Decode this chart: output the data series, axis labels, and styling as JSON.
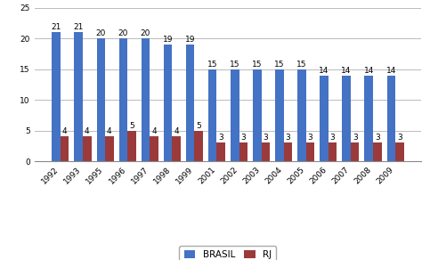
{
  "years": [
    "1992",
    "1993",
    "1995",
    "1996",
    "1997",
    "1998",
    "1999",
    "2001",
    "2002",
    "2003",
    "2004",
    "2005",
    "2006",
    "2007",
    "2008",
    "2009"
  ],
  "brasil": [
    21,
    21,
    20,
    20,
    20,
    19,
    19,
    15,
    15,
    15,
    15,
    15,
    14,
    14,
    14,
    14
  ],
  "rj": [
    4,
    4,
    4,
    5,
    4,
    4,
    5,
    3,
    3,
    3,
    3,
    3,
    3,
    3,
    3,
    3
  ],
  "brasil_color": "#4472C4",
  "rj_color": "#9B3A3A",
  "ylim": [
    0,
    25
  ],
  "yticks": [
    0,
    5,
    10,
    15,
    20,
    25
  ],
  "legend_labels": [
    "BRASIL",
    "RJ"
  ],
  "bar_width": 0.38,
  "background_color": "#FFFFFF",
  "grid_color": "#BBBBBB",
  "label_fontsize": 6.5,
  "tick_fontsize": 6.5,
  "legend_fontsize": 7.5
}
